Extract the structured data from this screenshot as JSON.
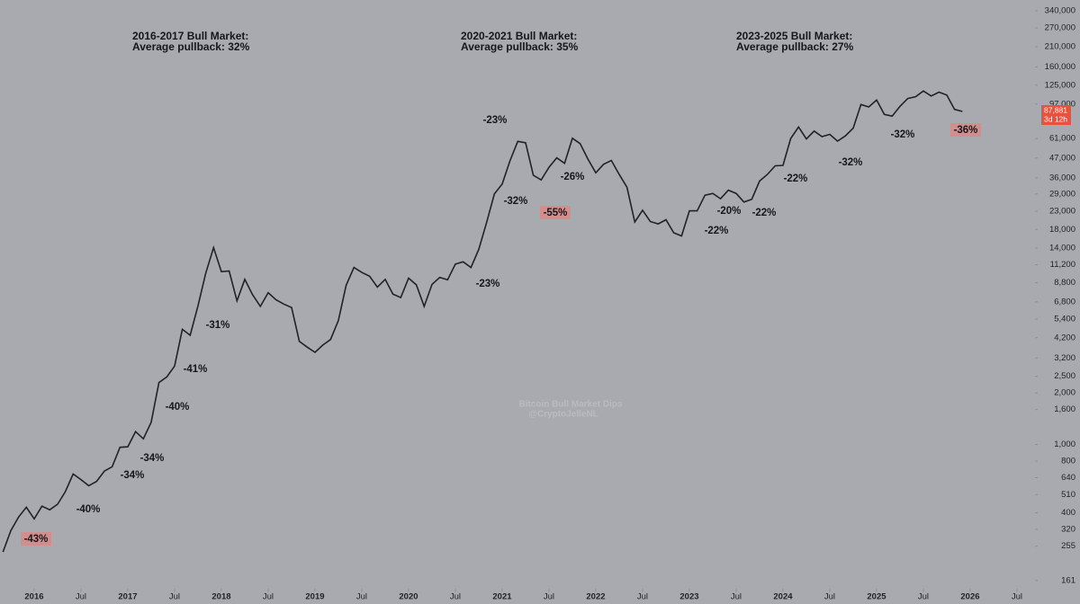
{
  "chart_data": {
    "type": "line",
    "title": "Bitcoin Bull Market Dips",
    "subtitle": "@CryptoJelleNL",
    "log_scale": true,
    "color": "#202226",
    "x": [
      "2015-09",
      "2015-10",
      "2015-11",
      "2015-12",
      "2016-01",
      "2016-02",
      "2016-03",
      "2016-04",
      "2016-05",
      "2016-06",
      "2016-07",
      "2016-08",
      "2016-09",
      "2016-10",
      "2016-11",
      "2016-12",
      "2017-01",
      "2017-02",
      "2017-03",
      "2017-04",
      "2017-05",
      "2017-06",
      "2017-07",
      "2017-08",
      "2017-09",
      "2017-10",
      "2017-11",
      "2017-12",
      "2018-01",
      "2018-02",
      "2018-03",
      "2018-04",
      "2018-05",
      "2018-06",
      "2018-07",
      "2018-08",
      "2018-09",
      "2018-10",
      "2018-11",
      "2018-12",
      "2019-01",
      "2019-02",
      "2019-03",
      "2019-04",
      "2019-05",
      "2019-06",
      "2019-07",
      "2019-08",
      "2019-09",
      "2019-10",
      "2019-11",
      "2019-12",
      "2020-01",
      "2020-02",
      "2020-03",
      "2020-04",
      "2020-05",
      "2020-06",
      "2020-07",
      "2020-08",
      "2020-09",
      "2020-10",
      "2020-11",
      "2020-12",
      "2021-01",
      "2021-02",
      "2021-03",
      "2021-04",
      "2021-05",
      "2021-06",
      "2021-07",
      "2021-08",
      "2021-09",
      "2021-10",
      "2021-11",
      "2021-12",
      "2022-01",
      "2022-02",
      "2022-03",
      "2022-04",
      "2022-05",
      "2022-06",
      "2022-07",
      "2022-08",
      "2022-09",
      "2022-10",
      "2022-11",
      "2022-12",
      "2023-01",
      "2023-02",
      "2023-03",
      "2023-04",
      "2023-05",
      "2023-06",
      "2023-07",
      "2023-08",
      "2023-09",
      "2023-10",
      "2023-11",
      "2023-12",
      "2024-01",
      "2024-02",
      "2024-03",
      "2024-04",
      "2024-05",
      "2024-06",
      "2024-07",
      "2024-08",
      "2024-09",
      "2024-10",
      "2024-11",
      "2024-12",
      "2025-01",
      "2025-02",
      "2025-03",
      "2025-04",
      "2025-05",
      "2025-06",
      "2025-07",
      "2025-08",
      "2025-09",
      "2025-10",
      "2025-11",
      "2025-12"
    ],
    "values": [
      236,
      314,
      377,
      430,
      368,
      437,
      416,
      448,
      531,
      673,
      624,
      575,
      609,
      700,
      742,
      963,
      970,
      1190,
      1080,
      1350,
      2300,
      2480,
      2870,
      4700,
      4340,
      6450,
      10000,
      14100,
      10200,
      10300,
      6900,
      9200,
      7500,
      6400,
      7700,
      7000,
      6600,
      6300,
      4000,
      3700,
      3450,
      3800,
      4100,
      5300,
      8500,
      10800,
      10100,
      9600,
      8300,
      9200,
      7550,
      7200,
      9350,
      8550,
      6400,
      8600,
      9450,
      9150,
      11300,
      11650,
      10800,
      13800,
      19700,
      29000,
      33100,
      45200,
      58800,
      57700,
      37300,
      35000,
      41500,
      47100,
      43800,
      61300,
      57000,
      46300,
      38500,
      43200,
      45500,
      37700,
      31800,
      19900,
      23300,
      20000,
      19400,
      20500,
      17200,
      16500,
      23100,
      23100,
      28500,
      29200,
      27200,
      30500,
      29200,
      26000,
      27000,
      34500,
      37700,
      42300,
      42600,
      61200,
      71300,
      60700,
      67500,
      62700,
      64600,
      59000,
      63300,
      70200,
      96400,
      93400,
      102400,
      84400,
      82500,
      94200,
      104600,
      107100,
      115700,
      108200,
      114000,
      109500,
      90400,
      87881
    ],
    "xlim": [
      "2015-09",
      "2026-09"
    ],
    "xticks": [
      {
        "value": "2016-01",
        "label": "2016"
      },
      {
        "value": "2016-07",
        "label": "Jul"
      },
      {
        "value": "2017-01",
        "label": "2017"
      },
      {
        "value": "2017-07",
        "label": "Jul"
      },
      {
        "value": "2018-01",
        "label": "2018"
      },
      {
        "value": "2018-07",
        "label": "Jul"
      },
      {
        "value": "2019-01",
        "label": "2019"
      },
      {
        "value": "2019-07",
        "label": "Jul"
      },
      {
        "value": "2020-01",
        "label": "2020"
      },
      {
        "value": "2020-07",
        "label": "Jul"
      },
      {
        "value": "2021-01",
        "label": "2021"
      },
      {
        "value": "2021-07",
        "label": "Jul"
      },
      {
        "value": "2022-01",
        "label": "2022"
      },
      {
        "value": "2022-07",
        "label": "Jul"
      },
      {
        "value": "2023-01",
        "label": "2023"
      },
      {
        "value": "2023-07",
        "label": "Jul"
      },
      {
        "value": "2024-01",
        "label": "2024"
      },
      {
        "value": "2024-07",
        "label": "Jul"
      },
      {
        "value": "2025-01",
        "label": "2025"
      },
      {
        "value": "2025-07",
        "label": "Jul"
      },
      {
        "value": "2026-01",
        "label": "2026"
      },
      {
        "value": "2026-07",
        "label": "Jul"
      }
    ],
    "ylim": [
      144,
      393000
    ],
    "yticks": [
      {
        "value": 340000,
        "label": "340,000"
      },
      {
        "value": 270000,
        "label": "270,000"
      },
      {
        "value": 210000,
        "label": "210,000"
      },
      {
        "value": 160000,
        "label": "160,000"
      },
      {
        "value": 125000,
        "label": "125,000"
      },
      {
        "value": 97000,
        "label": "97,000"
      },
      {
        "value": 61000,
        "label": "61,000"
      },
      {
        "value": 47000,
        "label": "47,000"
      },
      {
        "value": 36000,
        "label": "36,000"
      },
      {
        "value": 29000,
        "label": "29,000"
      },
      {
        "value": 23000,
        "label": "23,000"
      },
      {
        "value": 18000,
        "label": "18,000"
      },
      {
        "value": 14000,
        "label": "14,000"
      },
      {
        "value": 11200,
        "label": "11,200"
      },
      {
        "value": 8800,
        "label": "8,800"
      },
      {
        "value": 6800,
        "label": "6,800"
      },
      {
        "value": 5400,
        "label": "5,400"
      },
      {
        "value": 4200,
        "label": "4,200"
      },
      {
        "value": 3200,
        "label": "3,200"
      },
      {
        "value": 2500,
        "label": "2,500"
      },
      {
        "value": 2000,
        "label": "2,000"
      },
      {
        "value": 1600,
        "label": "1,600"
      },
      {
        "value": 1000,
        "label": "1,000"
      },
      800,
      640,
      510,
      400,
      320,
      255,
      161
    ],
    "last_price": {
      "value": 87881,
      "label": "87,881"
    },
    "countdown": "3d 12h",
    "headers": [
      {
        "title": "2016-2017 Bull Market:",
        "subtitle": "Average pullback: 32%"
      },
      {
        "title": "2020-2021 Bull Market:",
        "subtitle": "Average pullback: 35%"
      },
      {
        "title": "2023-2025 Bull Market:",
        "subtitle": "Average pullback: 27%"
      }
    ],
    "annotations": [
      {
        "text": "-43%",
        "highlight": true
      },
      {
        "text": "-40%"
      },
      {
        "text": "-34%"
      },
      {
        "text": "-34%"
      },
      {
        "text": "-40%"
      },
      {
        "text": "-41%"
      },
      {
        "text": "-31%"
      },
      {
        "text": "-23%"
      },
      {
        "text": "-32%"
      },
      {
        "text": "-55%",
        "highlight": true
      },
      {
        "text": "-26%"
      },
      {
        "text": "-23%"
      },
      {
        "text": "-22%"
      },
      {
        "text": "-20%"
      },
      {
        "text": "-22%"
      },
      {
        "text": "-22%"
      },
      {
        "text": "-32%"
      },
      {
        "text": "-32%"
      },
      {
        "text": "-36%",
        "highlight": true
      }
    ]
  }
}
